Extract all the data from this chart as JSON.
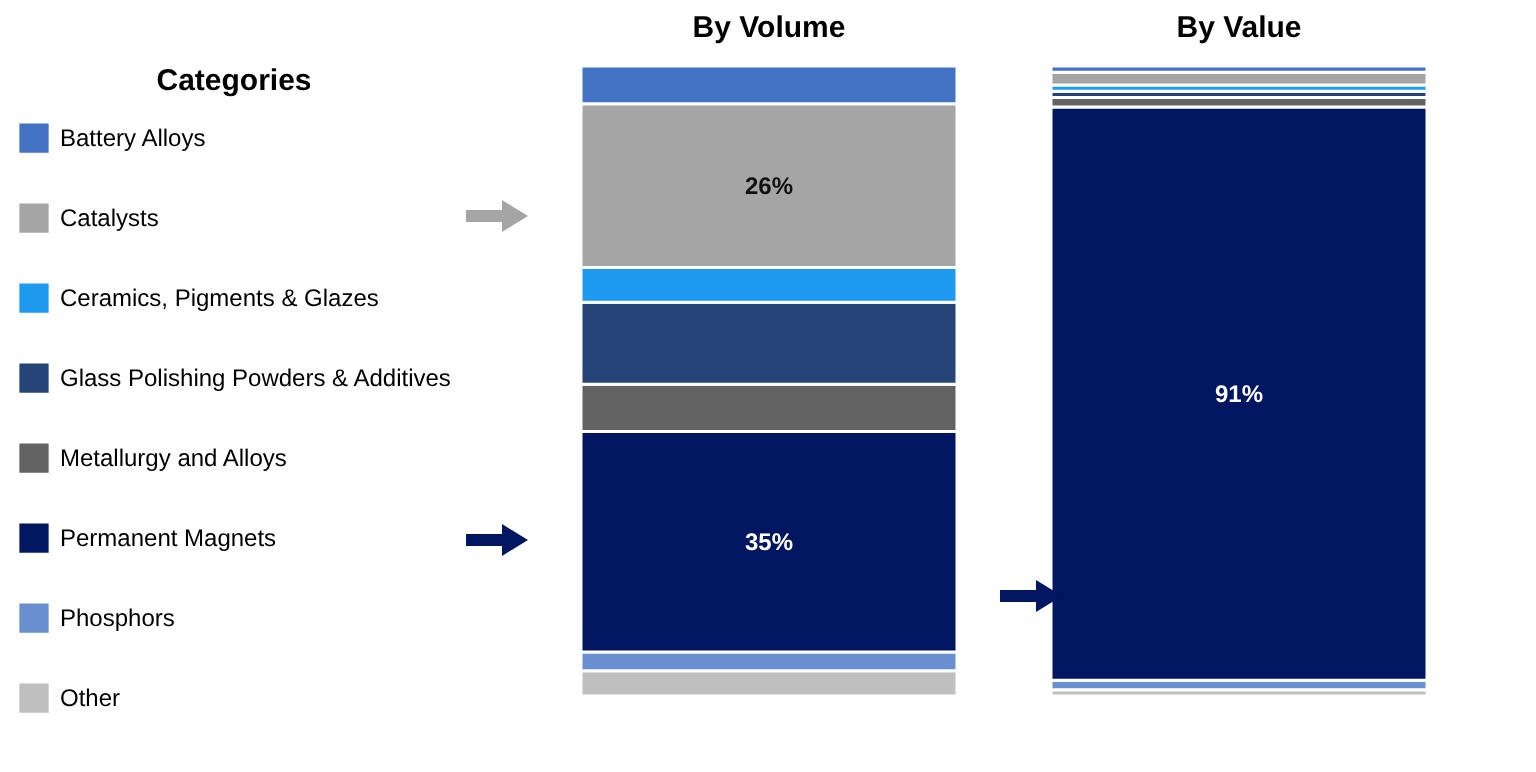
{
  "chart_data": {
    "type": "bar",
    "stacked": true,
    "legend_title": "Categories",
    "legend": "left",
    "categories": [
      "By Volume",
      "By Value"
    ],
    "series": [
      {
        "name": "Other",
        "color": "#bfbfbf",
        "values": [
          4,
          1
        ]
      },
      {
        "name": "Phosphors",
        "color": "#6a8fd0",
        "values": [
          3,
          1.5
        ]
      },
      {
        "name": "Permanent Magnets",
        "color": "#001660",
        "values": [
          35,
          91
        ],
        "value_labels": [
          "35%",
          "91%"
        ]
      },
      {
        "name": "Metallurgy and Alloys",
        "color": "#636363",
        "values": [
          7.5,
          1.5
        ]
      },
      {
        "name": "Glass Polishing Powders & Additives",
        "color": "#264478",
        "values": [
          13,
          1
        ]
      },
      {
        "name": "Ceramics, Pigments & Glazes",
        "color": "#1e9bf0",
        "values": [
          5.5,
          1
        ]
      },
      {
        "name": "Catalysts",
        "color": "#a5a5a5",
        "values": [
          26,
          2
        ],
        "value_labels": [
          "26%",
          null
        ]
      },
      {
        "name": "Battery Alloys",
        "color": "#4472c4",
        "values": [
          6,
          1
        ]
      }
    ]
  }
}
